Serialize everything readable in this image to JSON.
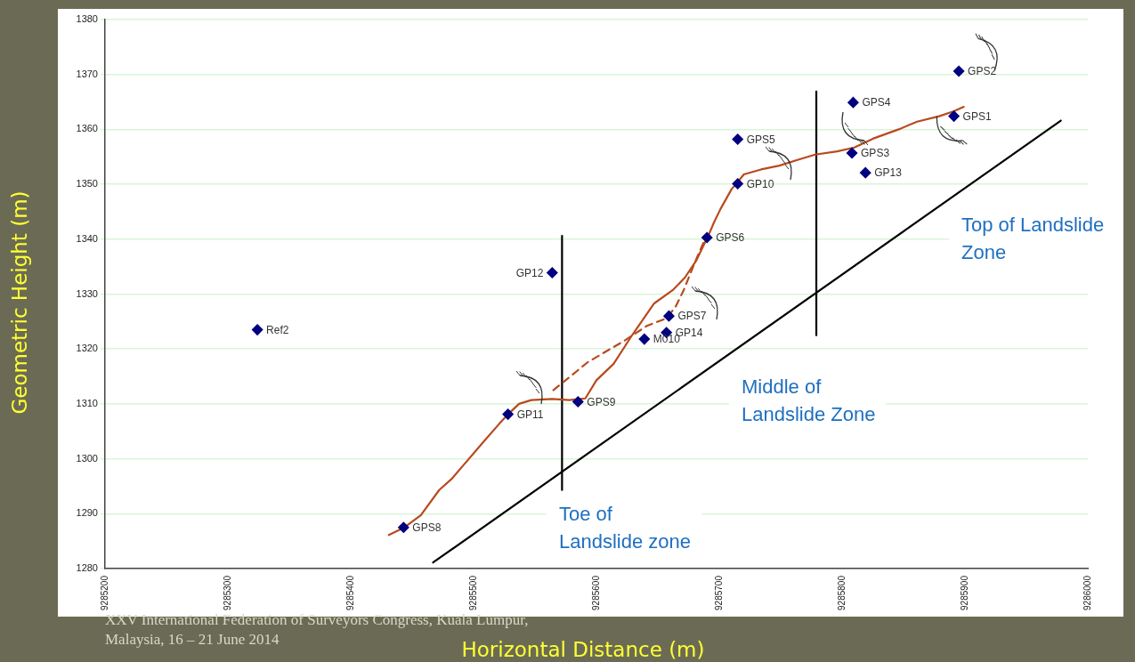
{
  "chart_data": {
    "type": "scatter",
    "xlabel": "Horizontal Distance (m)",
    "ylabel": "Geometric Height (m)",
    "xlim": [
      9285200,
      9286000
    ],
    "xticks": [
      9285200,
      9285300,
      9285400,
      9285500,
      9285600,
      9285700,
      9285800,
      9285900,
      9286000
    ],
    "ylim": [
      1280,
      1380
    ],
    "yticks": [
      1280,
      1290,
      1300,
      1310,
      1320,
      1330,
      1340,
      1350,
      1360,
      1370,
      1380
    ],
    "grid": "y",
    "legend": false,
    "series": [
      {
        "type": "scatter",
        "color": "#000080",
        "marker": "diamond",
        "x": [
          9285324,
          9285564,
          9285443,
          9285528,
          9285585,
          9285639,
          9285657,
          9285659,
          9285690,
          9285715,
          9285715,
          9285808,
          9285819,
          9285809,
          9285891,
          9285895
        ],
        "values": [
          1323.5,
          1333.9,
          1287.5,
          1308.1,
          1310.4,
          1321.8,
          1323.0,
          1326.0,
          1340.3,
          1350.1,
          1358.2,
          1355.7,
          1352.1,
          1364.9,
          1362.4,
          1370.6
        ],
        "value_labels": [
          "Ref2",
          "GP12",
          "GPS8",
          "GP11",
          "GPS9",
          "M010",
          "GP14",
          "GPS7",
          "GPS6",
          "GP10",
          "GPS5",
          "GPS3",
          "GP13",
          "GPS4",
          "GPS1",
          "GPS2"
        ]
      },
      {
        "type": "line",
        "color": "#b84a1e",
        "marker": "none",
        "line_style": "solid",
        "x": [
          9285431,
          9285443,
          9285457,
          9285472,
          9285482,
          9285492,
          9285507,
          9285521,
          9285528,
          9285537,
          9285547,
          9285564,
          9285578,
          9285591,
          9285600,
          9285614,
          9285629,
          9285647,
          9285662,
          9285672,
          9285681,
          9285691,
          9285696,
          9285701,
          9285710,
          9285715,
          9285720,
          9285734,
          9285749,
          9285763,
          9285778,
          9285796,
          9285810,
          9285825,
          9285846,
          9285861,
          9285879,
          9285891,
          9285899
        ],
        "values": [
          1286.1,
          1287.4,
          1289.7,
          1294.3,
          1296.3,
          1298.9,
          1302.8,
          1306.4,
          1308.1,
          1310.0,
          1310.7,
          1310.9,
          1310.7,
          1311.0,
          1314.3,
          1317.3,
          1322.5,
          1328.3,
          1330.7,
          1333.0,
          1336.0,
          1340.6,
          1343.2,
          1345.5,
          1349.1,
          1350.4,
          1351.8,
          1352.7,
          1353.4,
          1354.4,
          1355.4,
          1356.0,
          1356.7,
          1358.3,
          1360.0,
          1361.4,
          1362.4,
          1363.3,
          1364.1
        ]
      },
      {
        "type": "line",
        "color": "#b84a1e",
        "marker": "none",
        "line_style": "dashed",
        "x": [
          9285565,
          9285593,
          9285622,
          9285641,
          9285656,
          9285664,
          9285671,
          9285680,
          9285688
        ],
        "values": [
          1312.5,
          1317.6,
          1321.4,
          1324.2,
          1325.5,
          1327.5,
          1330.7,
          1335.7,
          1339.8
        ]
      },
      {
        "type": "line",
        "color": "#000000",
        "marker": "none",
        "line_style": "solid",
        "x": [
          9285467,
          9285978
        ],
        "values": [
          1281.1,
          1361.6
        ]
      },
      {
        "type": "line",
        "color": "#000000",
        "marker": "none",
        "line_style": "solid",
        "x": [
          9285572,
          9285572
        ],
        "values": [
          1294.3,
          1340.6
        ]
      },
      {
        "type": "line",
        "color": "#000000",
        "marker": "none",
        "line_style": "solid",
        "x": [
          9285779,
          9285779
        ],
        "values": [
          1322.5,
          1366.9
        ]
      }
    ],
    "annotations": [
      "Toe of\nLandslide zone",
      "Middle of\nLandslide Zone",
      "Top of Landslide\nZone",
      "XXV International Federation of Surveyors Congress, Kuala Lumpur,\nMalaysia, 16 – 21 June 2014"
    ]
  }
}
